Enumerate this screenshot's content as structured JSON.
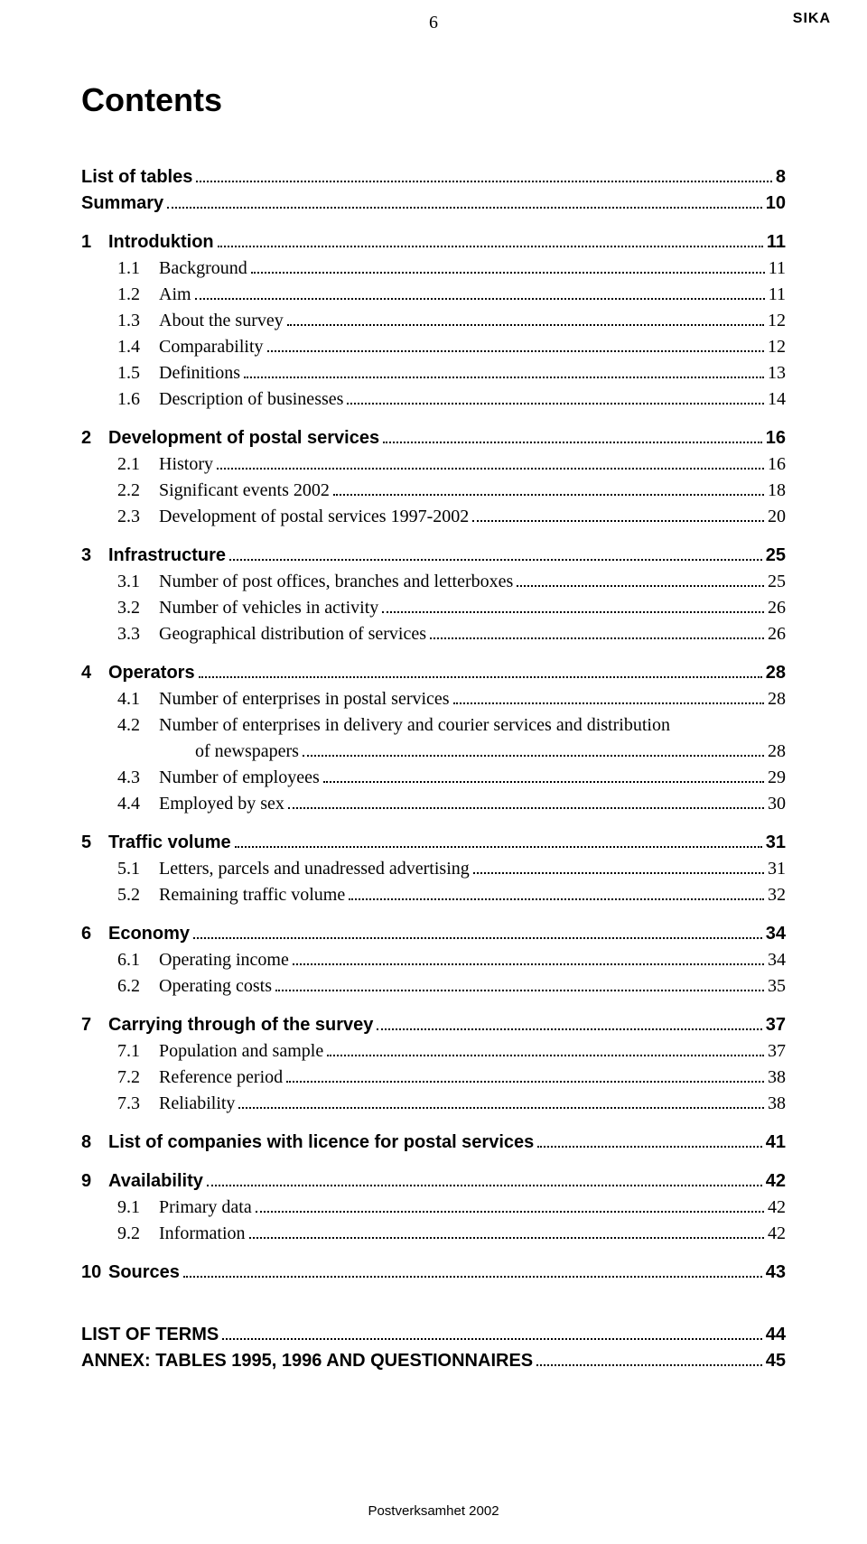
{
  "pageNumber": "6",
  "brand": "SIKA",
  "title": "Contents",
  "footer": "Postverksamhet 2002",
  "groups": [
    {
      "first": true,
      "entries": [
        {
          "num": "",
          "label": "List of tables",
          "page": "8",
          "bold": true,
          "indent": 0
        },
        {
          "num": "",
          "label": "Summary",
          "page": "10",
          "bold": true,
          "indent": 0
        }
      ]
    },
    {
      "entries": [
        {
          "num": "1",
          "label": "Introduktion",
          "page": "11",
          "bold": true,
          "indent": 0
        },
        {
          "num": "1.1",
          "label": "Background",
          "page": "11",
          "bold": false,
          "indent": 1
        },
        {
          "num": "1.2",
          "label": "Aim",
          "page": "11",
          "bold": false,
          "indent": 1
        },
        {
          "num": "1.3",
          "label": "About the survey",
          "page": "12",
          "bold": false,
          "indent": 1
        },
        {
          "num": "1.4",
          "label": "Comparability",
          "page": "12",
          "bold": false,
          "indent": 1
        },
        {
          "num": "1.5",
          "label": "Definitions",
          "page": "13",
          "bold": false,
          "indent": 1
        },
        {
          "num": "1.6",
          "label": "Description of businesses",
          "page": "14",
          "bold": false,
          "indent": 1
        }
      ]
    },
    {
      "entries": [
        {
          "num": "2",
          "label": "Development of postal services",
          "page": "16",
          "bold": true,
          "indent": 0
        },
        {
          "num": "2.1",
          "label": "History",
          "page": "16",
          "bold": false,
          "indent": 1
        },
        {
          "num": "2.2",
          "label": "Significant events 2002",
          "page": "18",
          "bold": false,
          "indent": 1
        },
        {
          "num": "2.3",
          "label": "Development of postal services 1997-2002",
          "page": "20",
          "bold": false,
          "indent": 1
        }
      ]
    },
    {
      "entries": [
        {
          "num": "3",
          "label": "Infrastructure",
          "page": "25",
          "bold": true,
          "indent": 0
        },
        {
          "num": "3.1",
          "label": "Number of post offices, branches and letterboxes",
          "page": "25",
          "bold": false,
          "indent": 1
        },
        {
          "num": "3.2",
          "label": "Number of vehicles in activity",
          "page": "26",
          "bold": false,
          "indent": 1
        },
        {
          "num": "3.3",
          "label": "Geographical distribution of services",
          "page": "26",
          "bold": false,
          "indent": 1
        }
      ]
    },
    {
      "entries": [
        {
          "num": "4",
          "label": "Operators",
          "page": "28",
          "bold": true,
          "indent": 0
        },
        {
          "num": "4.1",
          "label": "Number of enterprises in postal services",
          "page": "28",
          "bold": false,
          "indent": 1
        },
        {
          "num": "4.2",
          "label": "Number of enterprises in delivery and courier services and distribution",
          "label2": "of newspapers",
          "page": "28",
          "bold": false,
          "indent": 1,
          "multiline": true
        },
        {
          "num": "4.3",
          "label": "Number of employees",
          "page": "29",
          "bold": false,
          "indent": 1
        },
        {
          "num": "4.4",
          "label": "Employed by sex",
          "page": "30",
          "bold": false,
          "indent": 1
        }
      ]
    },
    {
      "entries": [
        {
          "num": "5",
          "label": "Traffic volume",
          "page": "31",
          "bold": true,
          "indent": 0
        },
        {
          "num": "5.1",
          "label": "Letters, parcels and unadressed advertising",
          "page": "31",
          "bold": false,
          "indent": 1
        },
        {
          "num": "5.2",
          "label": "Remaining traffic volume",
          "page": "32",
          "bold": false,
          "indent": 1
        }
      ]
    },
    {
      "entries": [
        {
          "num": "6",
          "label": "Economy",
          "page": "34",
          "bold": true,
          "indent": 0
        },
        {
          "num": "6.1",
          "label": "Operating income",
          "page": "34",
          "bold": false,
          "indent": 1
        },
        {
          "num": "6.2",
          "label": "Operating costs",
          "page": "35",
          "bold": false,
          "indent": 1
        }
      ]
    },
    {
      "entries": [
        {
          "num": "7",
          "label": "Carrying through of the survey",
          "page": "37",
          "bold": true,
          "indent": 0
        },
        {
          "num": "7.1",
          "label": "Population and sample",
          "page": "37",
          "bold": false,
          "indent": 1
        },
        {
          "num": "7.2",
          "label": "Reference period",
          "page": "38",
          "bold": false,
          "indent": 1
        },
        {
          "num": "7.3",
          "label": "Reliability",
          "page": "38",
          "bold": false,
          "indent": 1
        }
      ]
    },
    {
      "entries": [
        {
          "num": "8",
          "label": "List of companies with licence for postal services",
          "page": "41",
          "bold": true,
          "indent": 0
        }
      ]
    },
    {
      "entries": [
        {
          "num": "9",
          "label": "Availability",
          "page": "42",
          "bold": true,
          "indent": 0
        },
        {
          "num": "9.1",
          "label": "Primary data",
          "page": "42",
          "bold": false,
          "indent": 1
        },
        {
          "num": "9.2",
          "label": "Information",
          "page": "42",
          "bold": false,
          "indent": 1
        }
      ]
    },
    {
      "entries": [
        {
          "num": "10",
          "label": "Sources",
          "page": "43",
          "bold": true,
          "indent": 0
        }
      ]
    },
    {
      "spaced": true,
      "entries": [
        {
          "num": "",
          "label": "LIST OF TERMS",
          "page": "44",
          "bold": true,
          "indent": 0
        },
        {
          "num": "",
          "label": "ANNEX: TABLES 1995, 1996 AND QUESTIONNAIRES",
          "page": "45",
          "bold": true,
          "indent": 0
        }
      ]
    }
  ]
}
